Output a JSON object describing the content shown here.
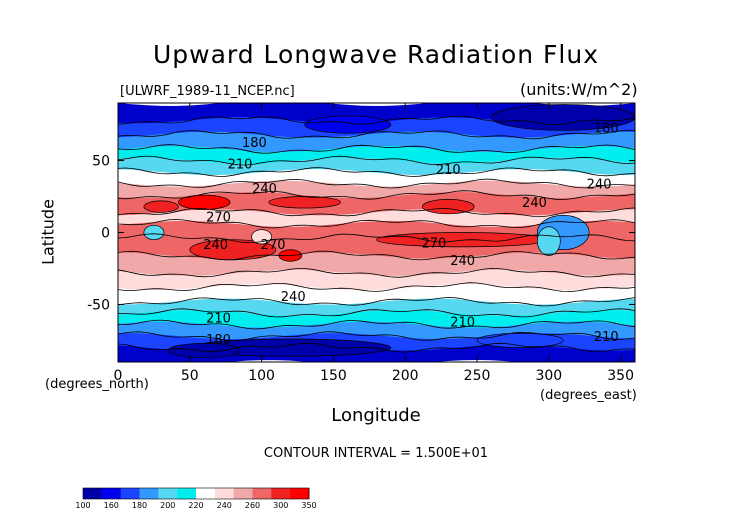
{
  "chart_data": {
    "type": "heatmap",
    "title": "Upward Longwave Radiation Flux",
    "file_label": "[ULWRF_1989-11_NCEP.nc]",
    "units_label": "(units:W/m^2)",
    "xlabel": "Longitude",
    "ylabel": "Latitude",
    "x_unit_note": "(degrees_east)",
    "y_unit_note": "(degrees_north)",
    "xlim": [
      0,
      360
    ],
    "ylim": [
      -90,
      90
    ],
    "xticks": [
      0,
      50,
      100,
      150,
      200,
      250,
      300,
      350
    ],
    "yticks": [
      -50,
      0,
      50
    ],
    "contour_interval_text": "CONTOUR INTERVAL = 1.500E+01",
    "contour_labels": [
      {
        "text": "180",
        "lon": 95,
        "lat": 62
      },
      {
        "text": "210",
        "lon": 85,
        "lat": 47
      },
      {
        "text": "240",
        "lon": 102,
        "lat": 30
      },
      {
        "text": "270",
        "lon": 70,
        "lat": 10
      },
      {
        "text": "240",
        "lon": 68,
        "lat": -9
      },
      {
        "text": "270",
        "lon": 108,
        "lat": -9
      },
      {
        "text": "270",
        "lon": 220,
        "lat": -8
      },
      {
        "text": "240",
        "lon": 240,
        "lat": -20
      },
      {
        "text": "240",
        "lon": 122,
        "lat": -45
      },
      {
        "text": "210",
        "lon": 230,
        "lat": 43
      },
      {
        "text": "240",
        "lon": 290,
        "lat": 20
      },
      {
        "text": "240",
        "lon": 335,
        "lat": 33
      },
      {
        "text": "180",
        "lon": 340,
        "lat": 72
      },
      {
        "text": "210",
        "lon": 70,
        "lat": -60
      },
      {
        "text": "180",
        "lon": 70,
        "lat": -75
      },
      {
        "text": "210",
        "lon": 240,
        "lat": -63
      },
      {
        "text": "210",
        "lon": 340,
        "lat": -73
      }
    ],
    "colorbar": {
      "labels": [
        "100",
        "160",
        "180",
        "200",
        "220",
        "240",
        "260",
        "300",
        "350"
      ],
      "colors": [
        "#0000aa",
        "#0000ee",
        "#1a44ff",
        "#3399ff",
        "#55d8f0",
        "#00eeee",
        "#ffffff",
        "#ffdddd",
        "#f0a8a8",
        "#ee6666",
        "#ee2222",
        "#ff0000"
      ]
    },
    "bands": [
      {
        "lat0": 90,
        "lat1": 78,
        "color": "#0000cc"
      },
      {
        "lat0": 78,
        "lat1": 68,
        "color": "#1a44ff"
      },
      {
        "lat0": 68,
        "lat1": 58,
        "color": "#3399ff"
      },
      {
        "lat0": 58,
        "lat1": 50,
        "color": "#00eeee"
      },
      {
        "lat0": 50,
        "lat1": 42,
        "color": "#55d8f0"
      },
      {
        "lat0": 42,
        "lat1": 34,
        "color": "#ffffff"
      },
      {
        "lat0": 34,
        "lat1": 26,
        "color": "#f0a8a8"
      },
      {
        "lat0": 26,
        "lat1": 14,
        "color": "#ee6666"
      },
      {
        "lat0": 14,
        "lat1": 6,
        "color": "#ffdddd"
      },
      {
        "lat0": 6,
        "lat1": -4,
        "color": "#ee6666"
      },
      {
        "lat0": -4,
        "lat1": -16,
        "color": "#ee6666"
      },
      {
        "lat0": -16,
        "lat1": -28,
        "color": "#f0a8a8"
      },
      {
        "lat0": -28,
        "lat1": -38,
        "color": "#ffdddd"
      },
      {
        "lat0": -38,
        "lat1": -48,
        "color": "#ffffff"
      },
      {
        "lat0": -48,
        "lat1": -56,
        "color": "#55d8f0"
      },
      {
        "lat0": -56,
        "lat1": -64,
        "color": "#00eeee"
      },
      {
        "lat0": -64,
        "lat1": -72,
        "color": "#3399ff"
      },
      {
        "lat0": -72,
        "lat1": -80,
        "color": "#1a44ff"
      },
      {
        "lat0": -80,
        "lat1": -90,
        "color": "#0000cc"
      }
    ],
    "features": [
      {
        "lon": 60,
        "lat": 21,
        "rlon": 18,
        "rlat": 5,
        "color": "#ff0000"
      },
      {
        "lon": 30,
        "lat": 18,
        "rlon": 12,
        "rlat": 4,
        "color": "#ee2222"
      },
      {
        "lon": 130,
        "lat": 21,
        "rlon": 25,
        "rlat": 4,
        "color": "#ee2222"
      },
      {
        "lon": 120,
        "lat": -16,
        "rlon": 8,
        "rlat": 4,
        "color": "#ff0000"
      },
      {
        "lon": 80,
        "lat": -12,
        "rlon": 30,
        "rlat": 7,
        "color": "#ee2222"
      },
      {
        "lon": 240,
        "lat": -5,
        "rlon": 60,
        "rlat": 5,
        "color": "#ee2222"
      },
      {
        "lon": 230,
        "lat": 18,
        "rlon": 18,
        "rlat": 5,
        "color": "#ee2222"
      },
      {
        "lon": 25,
        "lat": 0,
        "rlon": 7,
        "rlat": 5,
        "color": "#55d8f0"
      },
      {
        "lon": 310,
        "lat": 0,
        "rlon": 18,
        "rlat": 12,
        "color": "#3399ff"
      },
      {
        "lon": 300,
        "lat": -6,
        "rlon": 8,
        "rlat": 10,
        "color": "#55d8f0"
      },
      {
        "lon": 100,
        "lat": -3,
        "rlon": 7,
        "rlat": 5,
        "color": "#ffdddd"
      },
      {
        "lon": 310,
        "lat": 80,
        "rlon": 50,
        "rlat": 9,
        "color": "#0000aa"
      },
      {
        "lon": 160,
        "lat": 75,
        "rlon": 30,
        "rlat": 6,
        "color": "#0000ee"
      },
      {
        "lon": 120,
        "lat": -80,
        "rlon": 70,
        "rlat": 6,
        "color": "#0000aa"
      },
      {
        "lon": 280,
        "lat": -75,
        "rlon": 30,
        "rlat": 5,
        "color": "#1a44ff"
      },
      {
        "lon": 60,
        "lat": -82,
        "rlon": 25,
        "rlat": 5,
        "color": "#0000aa"
      }
    ]
  }
}
